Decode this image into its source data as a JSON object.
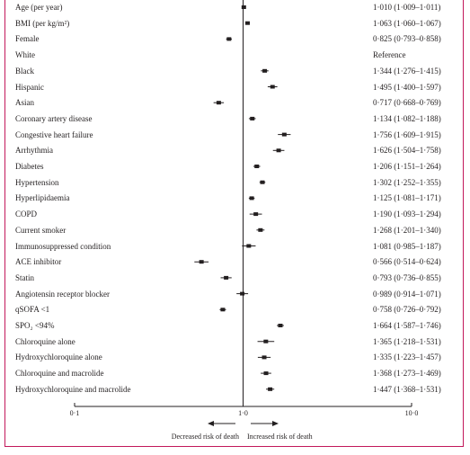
{
  "chart_data": {
    "type": "forest",
    "scale": "log",
    "reference_value": 1.0,
    "xlim": [
      0.1,
      10.0
    ],
    "x_ticks": [
      {
        "value": 0.1,
        "label": "0·1"
      },
      {
        "value": 1.0,
        "label": "1·0"
      },
      {
        "value": 10.0,
        "label": "10·0"
      }
    ],
    "direction_labels": {
      "left": "Decreased risk of death",
      "right": "Increased risk of death"
    },
    "rows": [
      {
        "label": "Age (per year)",
        "text": "1·010 (1·009–1·011)",
        "est": 1.01,
        "lo": 1.009,
        "hi": 1.011
      },
      {
        "label": "BMI (per kg/m²)",
        "text": "1·063 (1·060–1·067)",
        "est": 1.063,
        "lo": 1.06,
        "hi": 1.067
      },
      {
        "label": "Female",
        "text": "0·825 (0·793–0·858)",
        "est": 0.825,
        "lo": 0.793,
        "hi": 0.858
      },
      {
        "label": "White",
        "text": "Reference"
      },
      {
        "label": "Black",
        "text": "1·344 (1·276–1·415)",
        "est": 1.344,
        "lo": 1.276,
        "hi": 1.415
      },
      {
        "label": "Hispanic",
        "text": "1·495 (1·400–1·597)",
        "est": 1.495,
        "lo": 1.4,
        "hi": 1.597
      },
      {
        "label": "Asian",
        "text": "0·717 (0·668–0·769)",
        "est": 0.717,
        "lo": 0.668,
        "hi": 0.769
      },
      {
        "label": "Coronary artery disease",
        "text": "1·134 (1·082–1·188)",
        "est": 1.134,
        "lo": 1.082,
        "hi": 1.188
      },
      {
        "label": "Congestive heart failure",
        "text": "1·756 (1·609–1·915)",
        "est": 1.756,
        "lo": 1.609,
        "hi": 1.915
      },
      {
        "label": "Arrhythmia",
        "text": "1·626 (1·504–1·758)",
        "est": 1.626,
        "lo": 1.504,
        "hi": 1.758
      },
      {
        "label": "Diabetes",
        "text": "1·206 (1·151–1·264)",
        "est": 1.206,
        "lo": 1.151,
        "hi": 1.264
      },
      {
        "label": "Hypertension",
        "text": "1·302 (1·252–1·355)",
        "est": 1.302,
        "lo": 1.252,
        "hi": 1.355
      },
      {
        "label": "Hyperlipidaemia",
        "text": "1·125 (1·081–1·171)",
        "est": 1.125,
        "lo": 1.081,
        "hi": 1.171
      },
      {
        "label": "COPD",
        "text": "1·190 (1·093–1·294)",
        "est": 1.19,
        "lo": 1.093,
        "hi": 1.294
      },
      {
        "label": "Current smoker",
        "text": "1·268 (1·201–1·340)",
        "est": 1.268,
        "lo": 1.201,
        "hi": 1.34
      },
      {
        "label": "Immunosuppressed condition",
        "text": "1·081 (0·985–1·187)",
        "est": 1.081,
        "lo": 0.985,
        "hi": 1.187
      },
      {
        "label": "ACE inhibitor",
        "text": "0·566 (0·514–0·624)",
        "est": 0.566,
        "lo": 0.514,
        "hi": 0.624
      },
      {
        "label": "Statin",
        "text": "0·793 (0·736–0·855)",
        "est": 0.793,
        "lo": 0.736,
        "hi": 0.855
      },
      {
        "label": "Angiotensin receptor blocker",
        "text": "0·989 (0·914–1·071)",
        "est": 0.989,
        "lo": 0.914,
        "hi": 1.071
      },
      {
        "label": "qSOFA <1",
        "text": "0·758 (0·726–0·792)",
        "est": 0.758,
        "lo": 0.726,
        "hi": 0.792
      },
      {
        "label": "SPO₂ <94%",
        "text": "1·664 (1·587–1·746)",
        "est": 1.664,
        "lo": 1.587,
        "hi": 1.746
      },
      {
        "label": "Chloroquine alone",
        "text": "1·365 (1·218–1·531)",
        "est": 1.365,
        "lo": 1.218,
        "hi": 1.531
      },
      {
        "label": "Hydroxychloroquine alone",
        "text": "1·335 (1·223–1·457)",
        "est": 1.335,
        "lo": 1.223,
        "hi": 1.457
      },
      {
        "label": "Chloroquine and macrolide",
        "text": "1·368 (1·273–1·469)",
        "est": 1.368,
        "lo": 1.273,
        "hi": 1.469
      },
      {
        "label": "Hydroxychloroquine and macrolide",
        "text": "1·447 (1·368–1·531)",
        "est": 1.447,
        "lo": 1.368,
        "hi": 1.531
      }
    ],
    "colors": {
      "marks": "#231f20",
      "frame": "#c2185b"
    }
  }
}
